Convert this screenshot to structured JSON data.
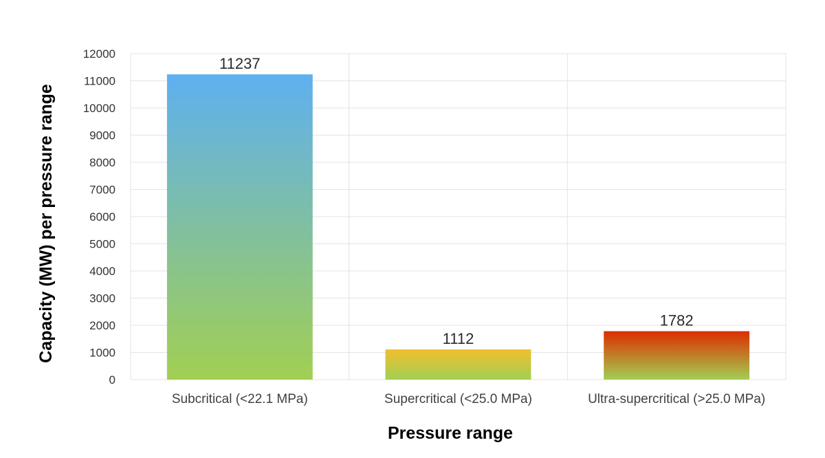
{
  "chart_data": {
    "type": "bar",
    "title": "",
    "xlabel": "Pressure range",
    "ylabel": "Capacity (MW) per pressure range",
    "categories": [
      "Subcritical (<22.1 MPa)",
      "Supercritical (<25.0 MPa)",
      "Ultra-supercritical (>25.0 MPa)"
    ],
    "values": [
      11237,
      1112,
      1782
    ],
    "ylim": [
      0,
      12000
    ],
    "yticks": [
      0,
      1000,
      2000,
      3000,
      4000,
      5000,
      6000,
      7000,
      8000,
      9000,
      10000,
      11000,
      12000
    ],
    "grid": true,
    "legend": "none",
    "bar_gradients": [
      [
        "#5eb0f0",
        "#a2cf52"
      ],
      [
        "#f0bf2e",
        "#a2cf52"
      ],
      [
        "#dd2d00",
        "#a2cf52"
      ]
    ]
  }
}
